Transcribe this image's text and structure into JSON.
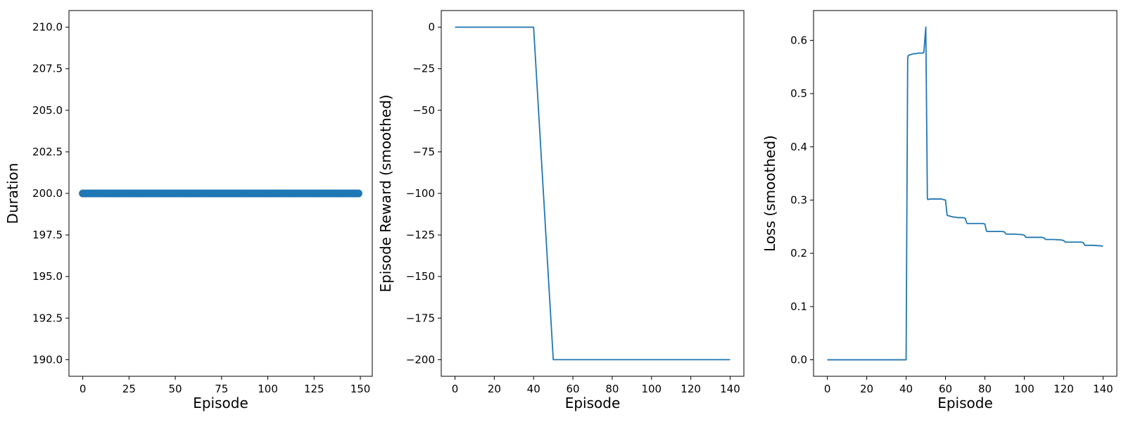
{
  "chart_data": [
    {
      "type": "scatter",
      "xlabel": "Episode",
      "ylabel": "Duration",
      "xlim": [
        -7.45,
        156.45
      ],
      "ylim": [
        189.0,
        211.0
      ],
      "xticks": [
        0,
        25,
        50,
        75,
        100,
        125,
        150
      ],
      "xtick_labels": [
        "0",
        "25",
        "50",
        "75",
        "100",
        "125",
        "150"
      ],
      "yticks": [
        190.0,
        192.5,
        195.0,
        197.5,
        200.0,
        202.5,
        205.0,
        207.5,
        210.0
      ],
      "ytick_labels": [
        "190.0",
        "192.5",
        "195.0",
        "197.5",
        "200.0",
        "202.5",
        "205.0",
        "207.5",
        "210.0"
      ],
      "color": "#1f77b4",
      "series": [
        {
          "x_start": 0,
          "x_end": 149,
          "y": 200
        }
      ]
    },
    {
      "type": "line",
      "xlabel": "Episode",
      "ylabel": "Episode Reward (smoothed)",
      "xlim": [
        -7,
        147
      ],
      "ylim": [
        -210,
        10
      ],
      "xticks": [
        0,
        20,
        40,
        60,
        80,
        100,
        120,
        140
      ],
      "xtick_labels": [
        "0",
        "20",
        "40",
        "60",
        "80",
        "100",
        "120",
        "140"
      ],
      "yticks": [
        0,
        -25,
        -50,
        -75,
        -100,
        -125,
        -150,
        -175,
        -200
      ],
      "ytick_labels": [
        "0",
        "−25",
        "−50",
        "−75",
        "−100",
        "−125",
        "−150",
        "−175",
        "−200"
      ],
      "color": "#1f77b4",
      "series": [
        {
          "x": [
            0,
            40,
            50,
            140
          ],
          "y": [
            0,
            0,
            -200,
            -200
          ]
        }
      ]
    },
    {
      "type": "line",
      "xlabel": "Episode",
      "ylabel": "Loss (smoothed)",
      "xlim": [
        -7,
        147
      ],
      "ylim": [
        -0.031,
        0.656
      ],
      "xticks": [
        0,
        20,
        40,
        60,
        80,
        100,
        120,
        140
      ],
      "xtick_labels": [
        "0",
        "20",
        "40",
        "60",
        "80",
        "100",
        "120",
        "140"
      ],
      "yticks": [
        0.0,
        0.1,
        0.2,
        0.3,
        0.4,
        0.5,
        0.6
      ],
      "ytick_labels": [
        "0.0",
        "0.1",
        "0.2",
        "0.3",
        "0.4",
        "0.5",
        "0.6"
      ],
      "color": "#1f77b4",
      "series": [
        {
          "x": [
            0,
            40,
            40.8,
            41,
            42,
            43,
            44,
            45,
            46,
            47,
            48,
            49,
            50,
            50.8,
            51,
            52,
            53,
            54,
            55,
            56,
            57,
            58,
            59,
            60,
            60.8,
            61,
            62,
            63,
            64,
            65,
            66,
            67,
            68,
            69,
            70,
            70.8,
            71,
            75,
            79,
            80,
            80.8,
            81,
            85,
            89,
            90,
            90.8,
            91,
            95,
            99,
            100,
            100.8,
            101,
            105,
            109,
            110,
            110.8,
            111,
            115,
            119,
            120,
            120.8,
            121,
            125,
            129,
            130,
            130.8,
            131,
            135,
            139,
            140
          ],
          "y": [
            0,
            0,
            0.566,
            0.571,
            0.573,
            0.574,
            0.575,
            0.575,
            0.576,
            0.576,
            0.576,
            0.577,
            0.625,
            0.303,
            0.301,
            0.302,
            0.302,
            0.302,
            0.302,
            0.302,
            0.302,
            0.302,
            0.301,
            0.3,
            0.272,
            0.271,
            0.27,
            0.269,
            0.268,
            0.268,
            0.267,
            0.267,
            0.267,
            0.267,
            0.266,
            0.257,
            0.256,
            0.256,
            0.256,
            0.255,
            0.242,
            0.241,
            0.241,
            0.241,
            0.24,
            0.236,
            0.236,
            0.236,
            0.235,
            0.234,
            0.23,
            0.23,
            0.23,
            0.23,
            0.229,
            0.226,
            0.226,
            0.226,
            0.225,
            0.224,
            0.221,
            0.221,
            0.221,
            0.221,
            0.22,
            0.215,
            0.215,
            0.215,
            0.214,
            0.213
          ]
        }
      ]
    }
  ]
}
